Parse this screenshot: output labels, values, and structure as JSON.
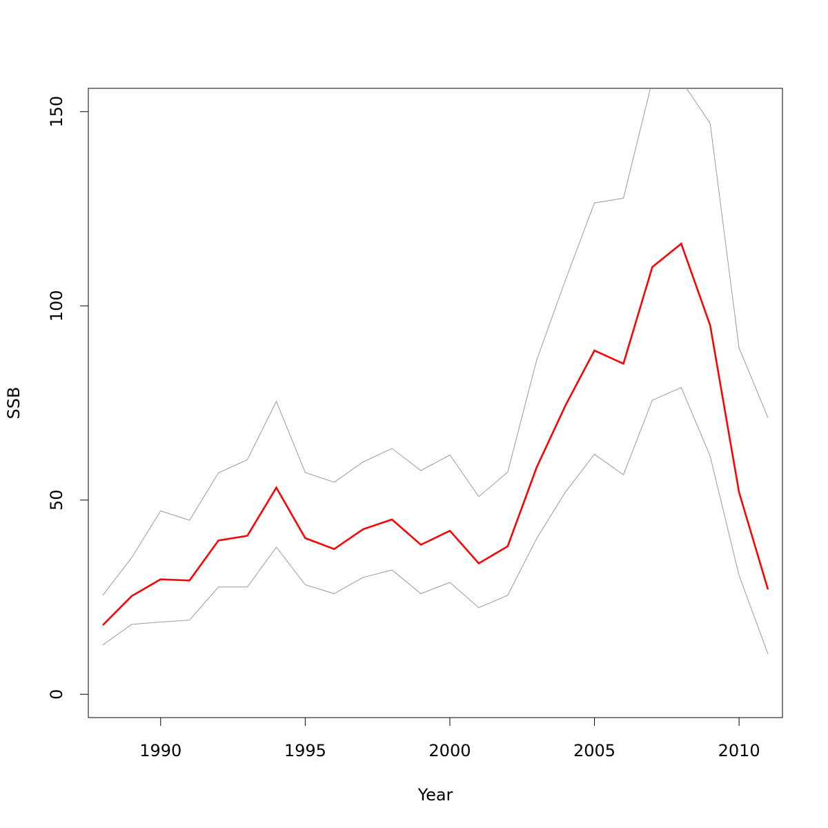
{
  "chart_data": {
    "type": "line",
    "title": "",
    "xlabel": "Year",
    "ylabel": "SSB",
    "xlim": [
      1987.5,
      2011.5
    ],
    "ylim": [
      -6,
      156
    ],
    "grid": false,
    "x_ticks": [
      1990,
      1995,
      2000,
      2005,
      2010
    ],
    "y_ticks": [
      0,
      50,
      100,
      150
    ],
    "x": [
      1988,
      1989,
      1990,
      1991,
      1992,
      1993,
      1994,
      1995,
      1996,
      1997,
      1998,
      1999,
      2000,
      2001,
      2002,
      2003,
      2004,
      2005,
      2006,
      2007,
      2008,
      2009,
      2010,
      2011
    ],
    "series": [
      {
        "role": "upper",
        "color": "#999999",
        "values": [
          25.5,
          35.2,
          47.2,
          44.8,
          57.0,
          60.4,
          75.4,
          57.1,
          54.6,
          59.8,
          63.3,
          57.6,
          61.6,
          50.9,
          57.2,
          86.0,
          106.7,
          126.5,
          127.7,
          158.0,
          158.0,
          147.0,
          89.2,
          71.2
        ]
      },
      {
        "role": "estimate",
        "color": "#ff0000",
        "values": [
          17.8,
          25.3,
          29.6,
          29.3,
          39.6,
          40.8,
          53.2,
          40.2,
          37.4,
          42.5,
          45.0,
          38.5,
          42.1,
          33.7,
          38.1,
          58.4,
          74.4,
          88.5,
          85.1,
          110.0,
          116.0,
          95.0,
          52.0,
          27.0
        ]
      },
      {
        "role": "lower",
        "color": "#999999",
        "values": [
          12.7,
          18.0,
          18.6,
          19.1,
          27.6,
          27.6,
          37.9,
          28.2,
          25.9,
          30.1,
          32.0,
          25.9,
          28.8,
          22.3,
          25.5,
          40.1,
          52.1,
          61.8,
          56.5,
          75.7,
          79.0,
          61.3,
          30.6,
          10.4
        ]
      }
    ]
  }
}
